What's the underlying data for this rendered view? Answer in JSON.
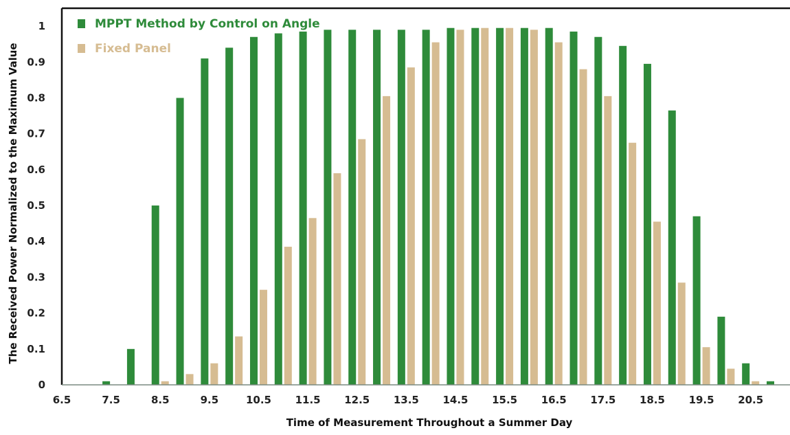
{
  "chart_data": {
    "type": "bar",
    "xlabel": "Time of Measurement Throughout a Summer Day",
    "ylabel": "The Received Power Normalized to the Maximum Value",
    "ylim": [
      0,
      1.05
    ],
    "xlim": [
      6.5,
      21.3
    ],
    "x_ticks": [
      6.5,
      7.5,
      8.5,
      9.5,
      10.5,
      11.5,
      12.5,
      13.5,
      14.5,
      15.5,
      16.5,
      17.5,
      18.5,
      19.5,
      20.5
    ],
    "x_tick_labels": [
      "6.5",
      "7.5",
      "8.5",
      "9.5",
      "10.5",
      "11.5",
      "12.5",
      "13.5",
      "14.5",
      "15.5",
      "16.5",
      "17.5",
      "18.5",
      "19.5",
      "20.5"
    ],
    "y_ticks": [
      0,
      0.1,
      0.2,
      0.3,
      0.4,
      0.5,
      0.6,
      0.7,
      0.8,
      0.9,
      1
    ],
    "y_tick_labels": [
      "0",
      "0.1",
      "0.2",
      "0.3",
      "0.4",
      "0.5",
      "0.6",
      "0.7",
      "0.8",
      "0.9",
      "1"
    ],
    "grid": false,
    "legend_position": "top-left",
    "x": [
      7,
      7.5,
      8,
      8.5,
      9,
      9.5,
      10,
      10.5,
      11,
      11.5,
      12,
      12.5,
      13,
      13.5,
      14,
      14.5,
      15,
      15.5,
      16,
      16.5,
      17,
      17.5,
      18,
      18.5,
      19,
      19.5,
      20,
      20.5,
      21
    ],
    "series": [
      {
        "name": "MPPT Method by Control on Angle",
        "color": "#2e8b3a",
        "values": [
          0,
          0.01,
          0.1,
          0.5,
          0.8,
          0.91,
          0.94,
          0.97,
          0.98,
          0.985,
          0.99,
          0.99,
          0.99,
          0.99,
          0.99,
          0.995,
          0.995,
          0.995,
          0.995,
          0.995,
          0.985,
          0.97,
          0.945,
          0.895,
          0.765,
          0.47,
          0.19,
          0.06,
          0.01
        ]
      },
      {
        "name": "Fixed Panel",
        "color": "#d6bc92",
        "values": [
          0,
          0,
          0,
          0.01,
          0.03,
          0.06,
          0.135,
          0.265,
          0.385,
          0.465,
          0.59,
          0.685,
          0.805,
          0.885,
          0.955,
          0.99,
          0.995,
          0.995,
          0.99,
          0.955,
          0.88,
          0.805,
          0.675,
          0.455,
          0.285,
          0.105,
          0.045,
          0.01,
          0
        ]
      }
    ]
  }
}
